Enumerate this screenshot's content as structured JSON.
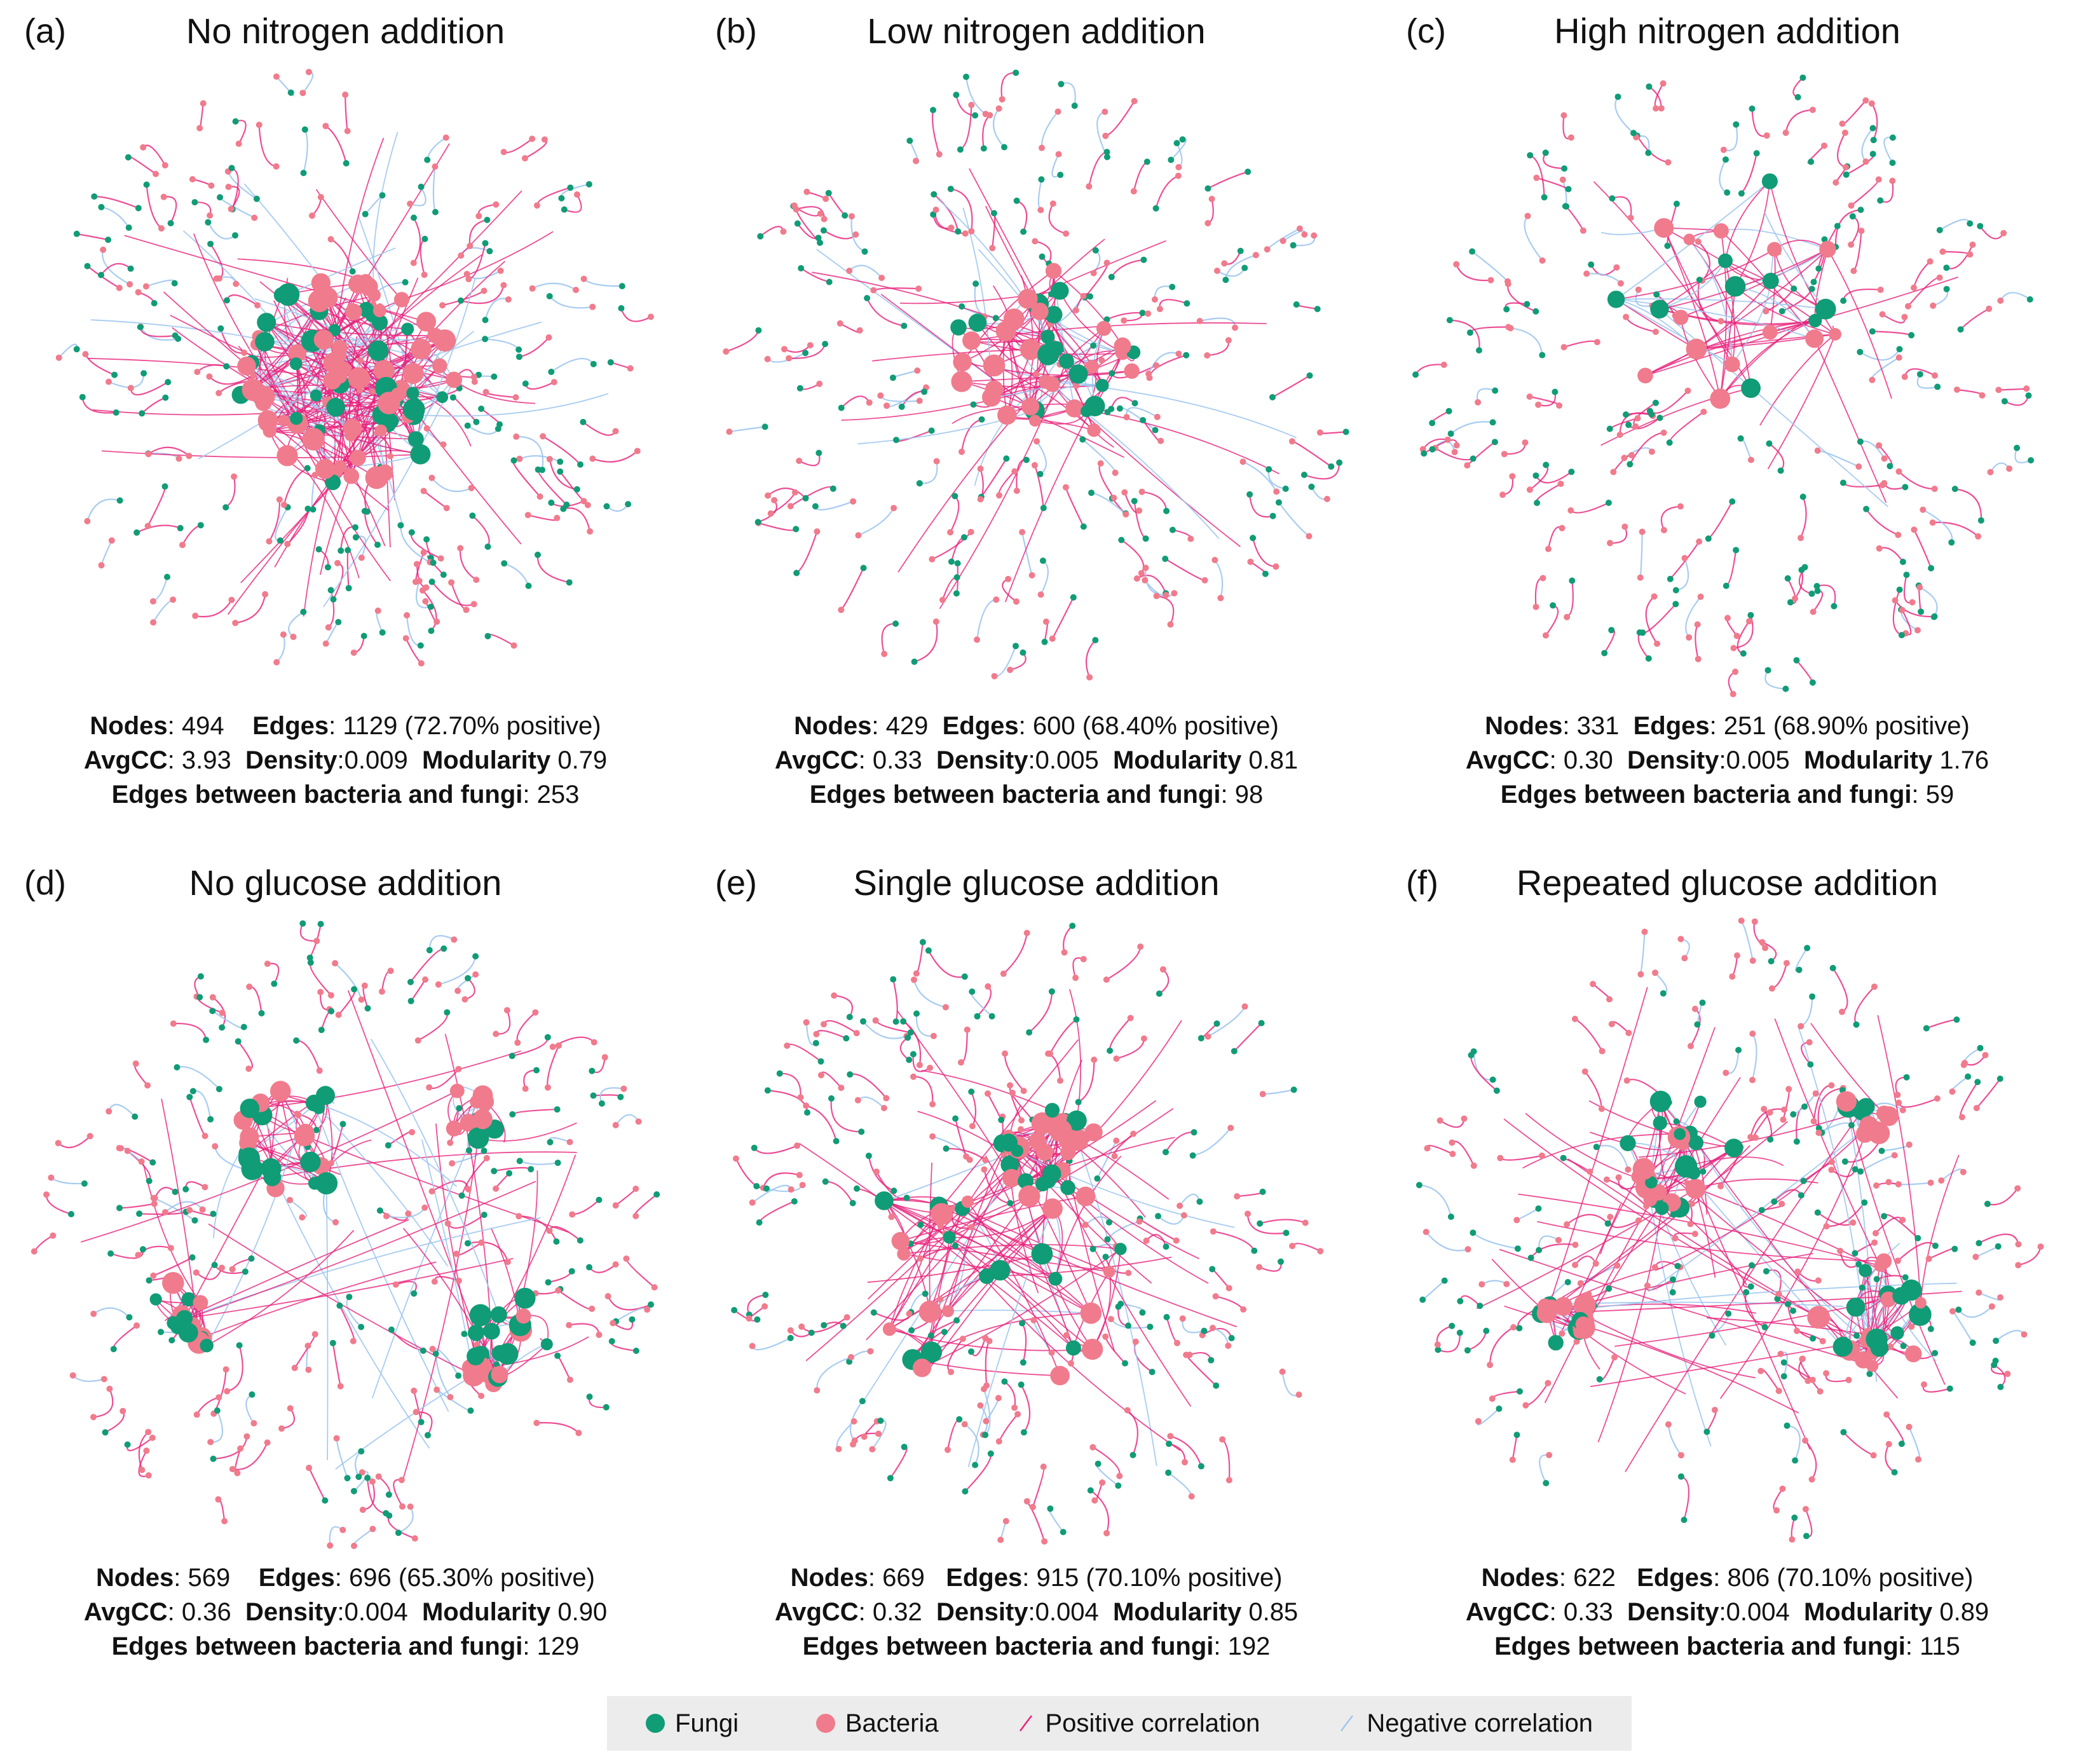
{
  "colors": {
    "fungi": "#109c76",
    "bacteria": "#f07b8c",
    "positive": "#e8207a",
    "negative": "#9fc6ef"
  },
  "stat_labels": {
    "nodes": "Nodes",
    "edges": "Edges",
    "avgcc": "AvgCC",
    "density": "Density",
    "modularity": "Modularity",
    "bf": "Edges between bacteria and fungi"
  },
  "panels": [
    {
      "letter": "(a)",
      "title": "No nitrogen addition",
      "nodes": "494",
      "edges": "1129",
      "positive": "(72.70% positive)",
      "avgcc": "3.93",
      "density": "0.009",
      "modularity": "0.79",
      "bf_edges": "253"
    },
    {
      "letter": "(b)",
      "title": "Low nitrogen addition",
      "nodes": "429",
      "edges": "600",
      "positive": "(68.40% positive)",
      "avgcc": "0.33",
      "density": "0.005",
      "modularity": "0.81",
      "bf_edges": "98"
    },
    {
      "letter": "(c)",
      "title": "High nitrogen addition",
      "nodes": "331",
      "edges": "251",
      "positive": "(68.90% positive)",
      "avgcc": "0.30",
      "density": "0.005",
      "modularity": "1.76",
      "bf_edges": "59"
    },
    {
      "letter": "(d)",
      "title": "No glucose addition",
      "nodes": "569",
      "edges": "696",
      "positive": "(65.30% positive)",
      "avgcc": "0.36",
      "density": "0.004",
      "modularity": "0.90",
      "bf_edges": "129"
    },
    {
      "letter": "(e)",
      "title": "Single glucose addition",
      "nodes": "669",
      "edges": "915",
      "positive": "(70.10% positive)",
      "avgcc": "0.32",
      "density": "0.004",
      "modularity": "0.85",
      "bf_edges": "192"
    },
    {
      "letter": "(f)",
      "title": "Repeated glucose addition",
      "nodes": "622",
      "edges": "806",
      "positive": "(70.10% positive)",
      "avgcc": "0.33",
      "density": "0.004",
      "modularity": "0.89",
      "bf_edges": "115"
    }
  ],
  "legend": {
    "fungi": "Fungi",
    "bacteria": "Bacteria",
    "positive": "Positive correlation",
    "negative": "Negative correlation"
  }
}
